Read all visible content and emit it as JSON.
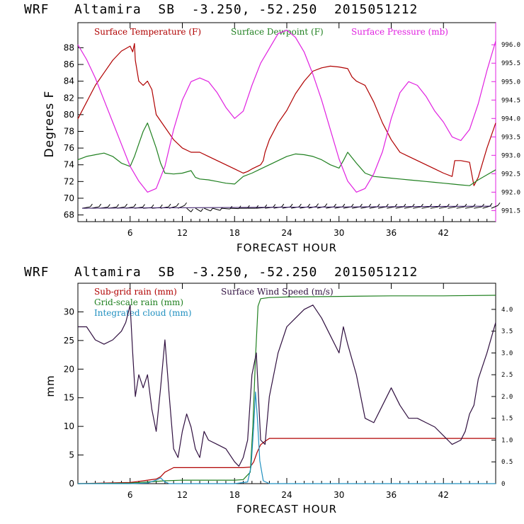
{
  "chart_data": [
    {
      "type": "line",
      "title": "WRF   Altamira  SB  -3.250, -52.250  2015051212",
      "xlabel": "FORECAST HOUR",
      "ylabel": "Degrees F",
      "xlim": [
        0,
        48
      ],
      "ylim": [
        67.2,
        91
      ],
      "y2lim": [
        991.2,
        996.6
      ],
      "xticks": [
        6,
        12,
        18,
        24,
        30,
        36,
        42
      ],
      "xtick_labels": [
        "6",
        "12",
        "18",
        "24",
        "30",
        "36",
        "42"
      ],
      "yticks": [
        68,
        70,
        72,
        74,
        76,
        78,
        80,
        82,
        84,
        86,
        88
      ],
      "ytick_labels": [
        "68",
        "70",
        "72",
        "74",
        "76",
        "78",
        "80",
        "82",
        "84",
        "86",
        "88"
      ],
      "y2ticks": [
        991.5,
        992.0,
        992.5,
        993.0,
        993.5,
        994.0,
        994.5,
        995.0,
        995.5,
        996.0
      ],
      "y2tick_labels": [
        "991.5",
        "992.0",
        "992.5",
        "993.0",
        "993.5",
        "994.0",
        "994.5",
        "995.0",
        "995.5",
        "996.0"
      ],
      "series": [
        {
          "name": "Surface Temperature (F)",
          "color": "#b00000",
          "axis": "left",
          "x": [
            0,
            1,
            2,
            3,
            4,
            5,
            6,
            6.3,
            6.5,
            6.6,
            7,
            7.5,
            8,
            8.5,
            9,
            10,
            11,
            12,
            13,
            14,
            15,
            16,
            17,
            18,
            19,
            19.5,
            20,
            21,
            21.3,
            21.5,
            22,
            23,
            24,
            25,
            26,
            27,
            28,
            29,
            30,
            31,
            31.5,
            32,
            33,
            34,
            35,
            36,
            37,
            38,
            39,
            40,
            41,
            42,
            43,
            43.3,
            44,
            45,
            45.5,
            46,
            47,
            48
          ],
          "y": [
            79.5,
            81.5,
            83.5,
            85,
            86.5,
            87.6,
            88.2,
            87.5,
            88.5,
            86.5,
            84,
            83.5,
            84,
            83,
            80,
            78.5,
            77,
            76,
            75.5,
            75.5,
            75,
            74.5,
            74,
            73.5,
            73,
            73.2,
            73.5,
            74,
            74.5,
            75.5,
            77,
            79,
            80.5,
            82.5,
            84,
            85.2,
            85.6,
            85.8,
            85.7,
            85.5,
            84.5,
            84,
            83.5,
            81.5,
            79,
            77,
            75.5,
            75,
            74.5,
            74,
            73.5,
            73,
            72.6,
            74.5,
            74.5,
            74.3,
            71.5,
            72.5,
            76,
            79
          ]
        },
        {
          "name": "Surface Dewpoint (F)",
          "color": "#208020",
          "axis": "left",
          "x": [
            0,
            1,
            2,
            3,
            4,
            5,
            6,
            6.5,
            7,
            7.5,
            8,
            8.5,
            9,
            9.5,
            10,
            11,
            12,
            13,
            13.5,
            14,
            15,
            16,
            17,
            18,
            19,
            20,
            21,
            22,
            23,
            24,
            25,
            26,
            27,
            28,
            29,
            30,
            30.5,
            31,
            32,
            33,
            34,
            35,
            36,
            37,
            38,
            39,
            40,
            41,
            42,
            43,
            44,
            45,
            46,
            47,
            48
          ],
          "y": [
            74.6,
            75,
            75.2,
            75.4,
            75,
            74.2,
            73.8,
            75,
            76.5,
            78,
            79,
            77.5,
            76,
            74.2,
            73,
            72.9,
            73,
            73.3,
            72.5,
            72.3,
            72.2,
            72,
            71.8,
            71.7,
            72.6,
            73,
            73.5,
            74,
            74.5,
            75,
            75.3,
            75.2,
            75,
            74.6,
            74,
            73.6,
            74.5,
            75.5,
            74.2,
            73,
            72.6,
            72.5,
            72.4,
            72.3,
            72.2,
            72.1,
            72,
            71.9,
            71.8,
            71.7,
            71.6,
            71.5,
            72.2,
            72.8,
            73.4
          ]
        },
        {
          "name": "Surface Pressure (mb)",
          "color": "#e020e0",
          "axis": "right",
          "x": [
            0,
            1,
            2,
            3,
            4,
            5,
            6,
            7,
            8,
            9,
            10,
            11,
            12,
            13,
            14,
            15,
            16,
            17,
            18,
            19,
            20,
            21,
            22,
            23,
            24,
            25,
            26,
            27,
            28,
            29,
            30,
            31,
            32,
            33,
            34,
            35,
            36,
            37,
            38,
            39,
            40,
            41,
            42,
            43,
            44,
            45,
            46,
            47,
            48
          ],
          "y": [
            996.0,
            995.6,
            995.1,
            994.5,
            993.9,
            993.3,
            992.7,
            992.3,
            992.0,
            992.1,
            992.7,
            993.7,
            994.5,
            995.0,
            995.1,
            995.0,
            994.7,
            994.3,
            994.0,
            994.2,
            994.9,
            995.5,
            995.9,
            996.3,
            996.4,
            996.2,
            995.8,
            995.2,
            994.5,
            993.7,
            992.9,
            992.3,
            992.0,
            992.1,
            992.5,
            993.1,
            994.0,
            994.7,
            995.0,
            994.9,
            994.6,
            994.2,
            993.9,
            993.5,
            993.4,
            993.7,
            994.4,
            995.3,
            996.1
          ]
        }
      ],
      "wind_barbs": {
        "color": "#000000",
        "y_level": 68.8,
        "x": [
          0.5,
          1.5,
          2.5,
          3.5,
          4.5,
          5.5,
          6.5,
          7.5,
          8.5,
          9.5,
          10.5,
          11.5,
          12.5,
          13.5,
          14.5,
          15.5,
          16.5,
          17.5,
          18.5,
          19.5,
          20.5,
          21.5,
          22.5,
          23.5,
          24.5,
          25.5,
          26.5,
          27.5,
          28.5,
          29.5,
          30.5,
          31.5,
          32.5,
          33.5,
          34.5,
          35.5,
          36.5,
          37.5,
          38.5,
          39.5,
          40.5,
          41.5,
          42.5,
          43.5,
          44.5,
          45.5,
          46.5,
          47.5
        ],
        "direction_deg": [
          70,
          70,
          75,
          75,
          70,
          70,
          75,
          80,
          80,
          70,
          60,
          50,
          150,
          140,
          130,
          120,
          100,
          95,
          90,
          90,
          80,
          75,
          70,
          70,
          70,
          70,
          65,
          65,
          70,
          70,
          70,
          70,
          70,
          70,
          70,
          70,
          70,
          70,
          70,
          70,
          70,
          70,
          70,
          70,
          70,
          70,
          60,
          50
        ]
      },
      "legend": [
        "Surface Temperature (F)",
        "Surface Dewpoint (F)",
        "Surface Pressure (mb)"
      ]
    },
    {
      "type": "line",
      "title": "WRF   Altamira  SB  -3.250, -52.250  2015051212",
      "xlabel": "FORECAST HOUR",
      "ylabel": "mm",
      "xlim": [
        0,
        48
      ],
      "ylim": [
        0,
        35
      ],
      "y2lim": [
        0,
        4.6
      ],
      "xticks": [
        6,
        12,
        18,
        24,
        30,
        36,
        42
      ],
      "xtick_labels": [
        "6",
        "12",
        "18",
        "24",
        "30",
        "36",
        "42"
      ],
      "yticks": [
        0,
        5,
        10,
        15,
        20,
        25,
        30
      ],
      "ytick_labels": [
        "0",
        "5",
        "10",
        "15",
        "20",
        "25",
        "30"
      ],
      "y2ticks": [
        0,
        0.5,
        1.0,
        1.5,
        2.0,
        2.5,
        3.0,
        3.5,
        4.0
      ],
      "y2tick_labels": [
        "0",
        "0.5",
        "1.0",
        "1.5",
        "2.0",
        "2.5",
        "3.0",
        "3.5",
        "4.0"
      ],
      "series": [
        {
          "name": "Sub-grid rain (mm)",
          "color": "#b00000",
          "axis": "left",
          "x": [
            0,
            6,
            7,
            8,
            9,
            9.5,
            10,
            11,
            12,
            14,
            16,
            18,
            19,
            19.8,
            20.2,
            20.6,
            21,
            21.5,
            22,
            24,
            30,
            36,
            42,
            48
          ],
          "y": [
            0,
            0.2,
            0.4,
            0.6,
            0.8,
            1.2,
            2.0,
            2.8,
            2.8,
            2.8,
            2.8,
            2.8,
            2.8,
            2.9,
            3.8,
            5.5,
            6.8,
            7.4,
            7.9,
            7.9,
            7.9,
            7.9,
            7.9,
            7.9
          ]
        },
        {
          "name": "Grid-scale rain (mm)",
          "color": "#208020",
          "axis": "left",
          "x": [
            0,
            6,
            8,
            10,
            12,
            14,
            16,
            18,
            19,
            19.8,
            20.1,
            20.4,
            20.7,
            21,
            22,
            24,
            30,
            36,
            42,
            48
          ],
          "y": [
            0,
            0.1,
            0.3,
            0.5,
            0.6,
            0.6,
            0.6,
            0.6,
            0.7,
            2.0,
            10,
            22,
            31,
            32.3,
            32.5,
            32.6,
            32.7,
            32.8,
            32.8,
            32.9
          ]
        },
        {
          "name": "Integrated cloud (mm)",
          "color": "#2090c0",
          "axis": "left",
          "x": [
            0,
            6,
            8,
            9,
            9.5,
            10,
            10.5,
            12,
            18,
            19.5,
            19.9,
            20.2,
            20.4,
            20.6,
            20.9,
            21.3,
            22,
            48
          ],
          "y": [
            0,
            0,
            0.1,
            0.6,
            1.0,
            0.3,
            0,
            0,
            0,
            0.3,
            3,
            10,
            16,
            12,
            4,
            0.5,
            0,
            0
          ]
        },
        {
          "name": "Surface Wind Speed (m/s)",
          "color": "#301040",
          "axis": "right",
          "x": [
            0,
            1,
            2,
            3,
            4,
            5,
            5.5,
            6,
            6.3,
            6.6,
            7,
            7.5,
            8,
            8.5,
            9,
            9.5,
            10,
            10.5,
            11,
            11.5,
            12,
            12.5,
            13,
            13.5,
            14,
            14.5,
            15,
            16,
            17,
            18,
            18.5,
            19,
            19.5,
            20,
            20.5,
            21,
            21.5,
            22,
            23,
            24,
            25,
            26,
            27,
            28,
            29,
            30,
            30.5,
            31,
            32,
            33,
            34,
            35,
            36,
            37,
            38,
            39,
            40,
            41,
            42,
            43,
            44,
            44.5,
            45,
            45.5,
            46,
            47,
            48
          ],
          "y": [
            3.6,
            3.6,
            3.3,
            3.2,
            3.3,
            3.5,
            3.7,
            4.1,
            3.0,
            2.0,
            2.5,
            2.2,
            2.5,
            1.7,
            1.2,
            2.2,
            3.3,
            2.0,
            0.8,
            0.6,
            1.2,
            1.6,
            1.3,
            0.8,
            0.6,
            1.2,
            1.0,
            0.9,
            0.8,
            0.5,
            0.4,
            0.6,
            1.0,
            2.5,
            3.0,
            1.0,
            0.9,
            2.0,
            3.0,
            3.6,
            3.8,
            4.0,
            4.1,
            3.8,
            3.4,
            3.0,
            3.6,
            3.2,
            2.5,
            1.5,
            1.4,
            1.8,
            2.2,
            1.8,
            1.5,
            1.5,
            1.4,
            1.3,
            1.1,
            0.9,
            1.0,
            1.2,
            1.6,
            1.8,
            2.4,
            3.0,
            3.7
          ]
        }
      ],
      "legend": [
        "Sub-grid rain (mm)",
        "Grid-scale rain (mm)",
        "Integrated cloud (mm)",
        "Surface Wind Speed (m/s)"
      ]
    }
  ]
}
